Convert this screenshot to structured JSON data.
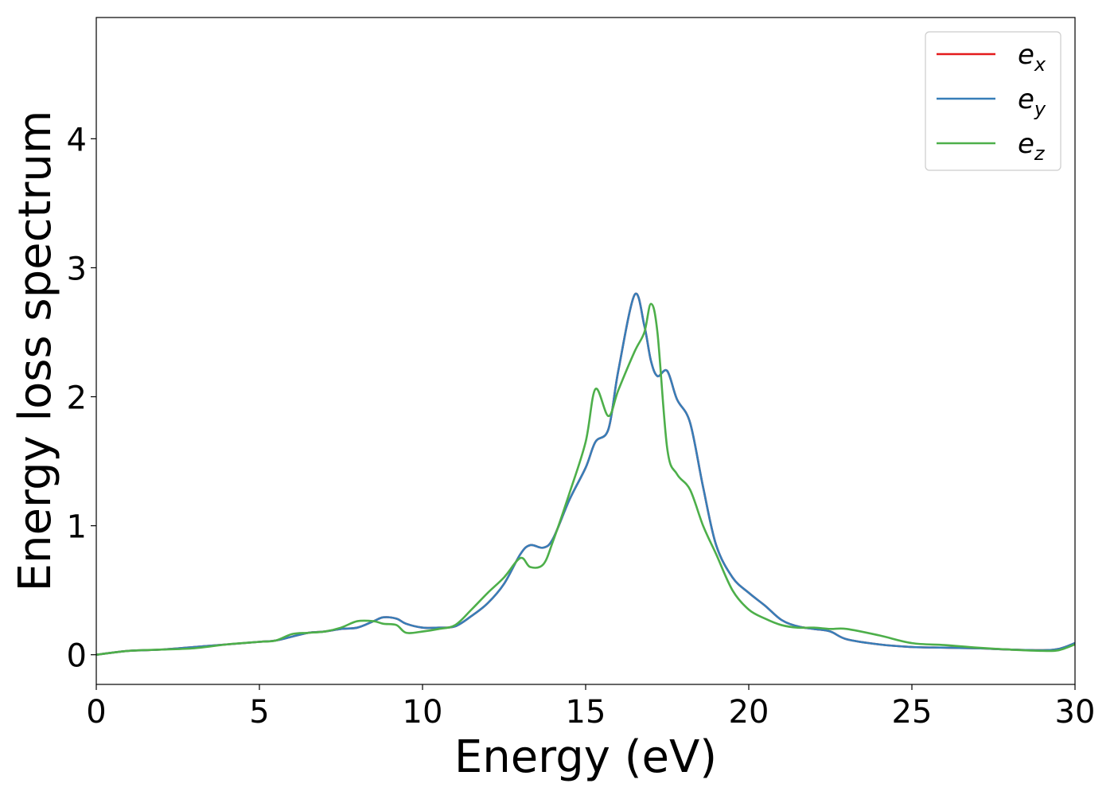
{
  "chart_data": {
    "type": "line",
    "xlabel": "Energy (eV)",
    "ylabel": "Energy loss spectrum",
    "x": [
      0,
      1,
      2,
      3,
      4,
      5,
      5.5,
      6,
      6.5,
      7,
      7.5,
      8,
      8.5,
      8.8,
      9.2,
      9.5,
      10,
      10.5,
      11,
      11.5,
      12,
      12.5,
      13,
      13.3,
      13.7,
      14,
      14.5,
      15,
      15.3,
      15.7,
      16,
      16.5,
      16.8,
      17,
      17.2,
      17.5,
      17.8,
      18.2,
      18.6,
      19,
      19.5,
      20,
      20.5,
      21,
      21.5,
      22,
      22.5,
      23,
      24,
      25,
      26,
      27,
      28,
      29,
      29.5,
      30
    ],
    "series": [
      {
        "name": "ex",
        "color": "#e41a1c",
        "values": [
          0,
          0.03,
          0.04,
          0.06,
          0.08,
          0.1,
          0.11,
          0.14,
          0.17,
          0.18,
          0.2,
          0.21,
          0.26,
          0.29,
          0.28,
          0.24,
          0.21,
          0.21,
          0.22,
          0.3,
          0.4,
          0.55,
          0.78,
          0.85,
          0.83,
          0.9,
          1.2,
          1.45,
          1.65,
          1.75,
          2.2,
          2.79,
          2.55,
          2.28,
          2.16,
          2.2,
          1.98,
          1.8,
          1.3,
          0.85,
          0.6,
          0.48,
          0.38,
          0.27,
          0.22,
          0.2,
          0.18,
          0.12,
          0.08,
          0.06,
          0.055,
          0.05,
          0.04,
          0.035,
          0.045,
          0.09
        ]
      },
      {
        "name": "ey",
        "color": "#377eb8",
        "values": [
          0,
          0.03,
          0.04,
          0.06,
          0.08,
          0.1,
          0.11,
          0.14,
          0.17,
          0.18,
          0.2,
          0.21,
          0.26,
          0.29,
          0.28,
          0.24,
          0.21,
          0.21,
          0.22,
          0.3,
          0.4,
          0.55,
          0.78,
          0.85,
          0.83,
          0.9,
          1.2,
          1.45,
          1.65,
          1.75,
          2.2,
          2.79,
          2.55,
          2.28,
          2.16,
          2.2,
          1.98,
          1.8,
          1.3,
          0.85,
          0.6,
          0.48,
          0.38,
          0.27,
          0.22,
          0.2,
          0.18,
          0.12,
          0.08,
          0.06,
          0.055,
          0.05,
          0.04,
          0.035,
          0.045,
          0.09
        ]
      },
      {
        "name": "ez",
        "color": "#4daf4a",
        "values": [
          0,
          0.03,
          0.04,
          0.05,
          0.08,
          0.1,
          0.11,
          0.16,
          0.17,
          0.18,
          0.21,
          0.26,
          0.26,
          0.24,
          0.23,
          0.17,
          0.18,
          0.2,
          0.23,
          0.35,
          0.48,
          0.6,
          0.75,
          0.68,
          0.7,
          0.88,
          1.25,
          1.65,
          2.06,
          1.85,
          2.05,
          2.35,
          2.5,
          2.72,
          2.5,
          1.6,
          1.4,
          1.28,
          1.0,
          0.78,
          0.5,
          0.35,
          0.28,
          0.23,
          0.21,
          0.21,
          0.2,
          0.2,
          0.15,
          0.09,
          0.075,
          0.055,
          0.04,
          0.03,
          0.035,
          0.08
        ]
      }
    ],
    "xlim": [
      0,
      30
    ],
    "ylim": [
      -0.23,
      4.94
    ],
    "xticks": [
      0,
      5,
      10,
      15,
      20,
      25,
      30
    ],
    "yticks": [
      0,
      1,
      2,
      3,
      4
    ],
    "legend": "upper right"
  }
}
